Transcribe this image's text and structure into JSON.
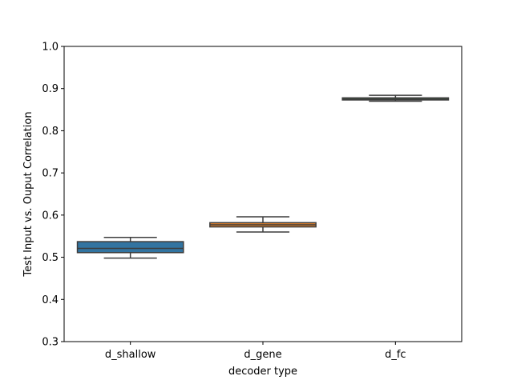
{
  "chart_data": {
    "type": "box",
    "title": "",
    "xlabel": "decoder type",
    "ylabel": "Test Input vs. Ouput Correlation",
    "ylim": [
      0.3,
      1.0
    ],
    "yticks": [
      "0.3",
      "0.4",
      "0.5",
      "0.6",
      "0.7",
      "0.8",
      "0.9",
      "1.0"
    ],
    "grid": false,
    "categories": [
      "d_shallow",
      "d_gene",
      "d_fc"
    ],
    "boxes": [
      {
        "category": "d_shallow",
        "whisker_low": 0.498,
        "q1": 0.511,
        "median": 0.521,
        "q3": 0.537,
        "whisker_high": 0.547,
        "color": "#3274a1"
      },
      {
        "category": "d_gene",
        "whisker_low": 0.56,
        "q1": 0.572,
        "median": 0.577,
        "q3": 0.582,
        "whisker_high": 0.596,
        "color": "#e1812c"
      },
      {
        "category": "d_fc",
        "whisker_low": 0.87,
        "q1": 0.873,
        "median": 0.875,
        "q3": 0.878,
        "whisker_high": 0.884,
        "color": "#3a923a"
      }
    ]
  }
}
